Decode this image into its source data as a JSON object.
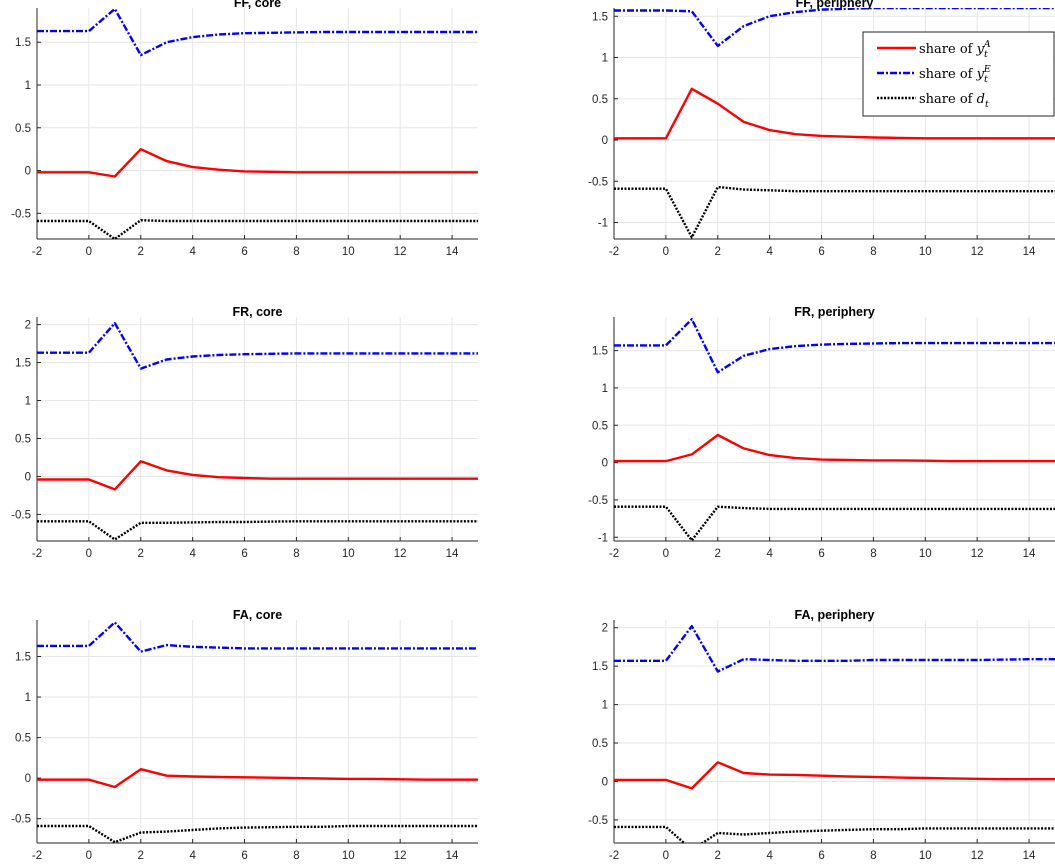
{
  "chart_data": [
    {
      "type": "line",
      "title": "FF, core",
      "x": [
        -2,
        -1,
        0,
        1,
        2,
        3,
        4,
        5,
        6,
        7,
        8,
        9,
        10,
        11,
        12,
        13,
        14,
        15
      ],
      "xlim": [
        -2,
        15
      ],
      "ylim": [
        -0.8,
        1.9
      ],
      "xticks": [
        -2,
        0,
        2,
        4,
        6,
        8,
        10,
        12,
        14
      ],
      "yticks": [
        -0.5,
        0,
        0.5,
        1,
        1.5
      ],
      "grid": true,
      "series": [
        {
          "key": "yA",
          "color": "#ff0000",
          "dash": "solid",
          "values": [
            -0.02,
            -0.02,
            -0.02,
            -0.07,
            0.25,
            0.11,
            0.04,
            0.01,
            -0.01,
            -0.015,
            -0.02,
            -0.02,
            -0.02,
            -0.02,
            -0.02,
            -0.02,
            -0.02,
            -0.02
          ]
        },
        {
          "key": "yE",
          "color": "#0000ff",
          "dash": "dashdot",
          "values": [
            1.63,
            1.63,
            1.63,
            1.89,
            1.35,
            1.5,
            1.56,
            1.59,
            1.605,
            1.61,
            1.615,
            1.62,
            1.62,
            1.62,
            1.62,
            1.62,
            1.62,
            1.62
          ]
        },
        {
          "key": "d",
          "color": "#000000",
          "dash": "dotted",
          "values": [
            -0.59,
            -0.59,
            -0.59,
            -0.8,
            -0.58,
            -0.59,
            -0.59,
            -0.59,
            -0.59,
            -0.59,
            -0.59,
            -0.59,
            -0.59,
            -0.59,
            -0.59,
            -0.59,
            -0.59,
            -0.59
          ]
        }
      ]
    },
    {
      "type": "line",
      "title": "FF, periphery",
      "x": [
        -2,
        -1,
        0,
        1,
        2,
        3,
        4,
        5,
        6,
        7,
        8,
        9,
        10,
        11,
        12,
        13,
        14,
        15
      ],
      "xlim": [
        -2,
        15
      ],
      "ylim": [
        -1.2,
        1.6
      ],
      "xticks": [
        -2,
        0,
        2,
        4,
        6,
        8,
        10,
        12,
        14
      ],
      "yticks": [
        -1,
        -0.5,
        0,
        0.5,
        1,
        1.5
      ],
      "grid": true,
      "legend": {
        "placement": "top-right",
        "entries": [
          "yA",
          "yE",
          "d"
        ]
      },
      "series": [
        {
          "key": "yA",
          "color": "#ff0000",
          "dash": "solid",
          "values": [
            0.02,
            0.02,
            0.02,
            0.62,
            0.44,
            0.22,
            0.12,
            0.07,
            0.05,
            0.04,
            0.03,
            0.025,
            0.02,
            0.02,
            0.02,
            0.02,
            0.02,
            0.02
          ]
        },
        {
          "key": "yE",
          "color": "#0000ff",
          "dash": "dashdot",
          "values": [
            1.57,
            1.57,
            1.57,
            1.56,
            1.14,
            1.38,
            1.5,
            1.55,
            1.58,
            1.59,
            1.6,
            1.6,
            1.6,
            1.6,
            1.6,
            1.6,
            1.6,
            1.6
          ]
        },
        {
          "key": "d",
          "color": "#000000",
          "dash": "dotted",
          "values": [
            -0.59,
            -0.59,
            -0.59,
            -1.18,
            -0.57,
            -0.6,
            -0.61,
            -0.62,
            -0.62,
            -0.62,
            -0.62,
            -0.62,
            -0.62,
            -0.62,
            -0.62,
            -0.62,
            -0.62,
            -0.62
          ]
        }
      ]
    },
    {
      "type": "line",
      "title": "FR, core",
      "x": [
        -2,
        -1,
        0,
        1,
        2,
        3,
        4,
        5,
        6,
        7,
        8,
        9,
        10,
        11,
        12,
        13,
        14,
        15
      ],
      "xlim": [
        -2,
        15
      ],
      "ylim": [
        -0.85,
        2.1
      ],
      "xticks": [
        -2,
        0,
        2,
        4,
        6,
        8,
        10,
        12,
        14
      ],
      "yticks": [
        -0.5,
        0,
        0.5,
        1,
        1.5,
        2
      ],
      "grid": true,
      "series": [
        {
          "key": "yA",
          "color": "#ff0000",
          "dash": "solid",
          "values": [
            -0.04,
            -0.04,
            -0.04,
            -0.17,
            0.2,
            0.08,
            0.02,
            -0.01,
            -0.02,
            -0.03,
            -0.03,
            -0.03,
            -0.03,
            -0.03,
            -0.03,
            -0.03,
            -0.03,
            -0.03
          ]
        },
        {
          "key": "yE",
          "color": "#0000ff",
          "dash": "dashdot",
          "values": [
            1.63,
            1.63,
            1.63,
            2.02,
            1.42,
            1.54,
            1.58,
            1.6,
            1.61,
            1.615,
            1.62,
            1.62,
            1.62,
            1.62,
            1.62,
            1.62,
            1.62,
            1.62
          ]
        },
        {
          "key": "d",
          "color": "#000000",
          "dash": "dotted",
          "values": [
            -0.59,
            -0.59,
            -0.59,
            -0.83,
            -0.61,
            -0.61,
            -0.605,
            -0.6,
            -0.6,
            -0.595,
            -0.59,
            -0.59,
            -0.59,
            -0.59,
            -0.59,
            -0.59,
            -0.59,
            -0.59
          ]
        }
      ]
    },
    {
      "type": "line",
      "title": "FR, periphery",
      "x": [
        -2,
        -1,
        0,
        1,
        2,
        3,
        4,
        5,
        6,
        7,
        8,
        9,
        10,
        11,
        12,
        13,
        14,
        15
      ],
      "xlim": [
        -2,
        15
      ],
      "ylim": [
        -1.05,
        1.95
      ],
      "xticks": [
        -2,
        0,
        2,
        4,
        6,
        8,
        10,
        12,
        14
      ],
      "yticks": [
        -1,
        -0.5,
        0,
        0.5,
        1,
        1.5
      ],
      "grid": true,
      "series": [
        {
          "key": "yA",
          "color": "#ff0000",
          "dash": "solid",
          "values": [
            0.02,
            0.02,
            0.02,
            0.11,
            0.37,
            0.19,
            0.1,
            0.06,
            0.04,
            0.035,
            0.03,
            0.03,
            0.025,
            0.02,
            0.02,
            0.02,
            0.02,
            0.02
          ]
        },
        {
          "key": "yE",
          "color": "#0000ff",
          "dash": "dashdot",
          "values": [
            1.57,
            1.57,
            1.57,
            1.92,
            1.21,
            1.43,
            1.52,
            1.56,
            1.58,
            1.59,
            1.595,
            1.6,
            1.6,
            1.6,
            1.6,
            1.6,
            1.6,
            1.6
          ]
        },
        {
          "key": "d",
          "color": "#000000",
          "dash": "dotted",
          "values": [
            -0.59,
            -0.59,
            -0.59,
            -1.04,
            -0.59,
            -0.61,
            -0.62,
            -0.62,
            -0.62,
            -0.62,
            -0.62,
            -0.62,
            -0.62,
            -0.62,
            -0.62,
            -0.62,
            -0.62,
            -0.62
          ]
        }
      ]
    },
    {
      "type": "line",
      "title": "FA, core",
      "x": [
        -2,
        -1,
        0,
        1,
        2,
        3,
        4,
        5,
        6,
        7,
        8,
        9,
        10,
        11,
        12,
        13,
        14,
        15
      ],
      "xlim": [
        -2,
        15
      ],
      "ylim": [
        -0.8,
        1.95
      ],
      "xticks": [
        -2,
        0,
        2,
        4,
        6,
        8,
        10,
        12,
        14
      ],
      "yticks": [
        -0.5,
        0,
        0.5,
        1,
        1.5
      ],
      "grid": true,
      "series": [
        {
          "key": "yA",
          "color": "#ff0000",
          "dash": "solid",
          "values": [
            -0.02,
            -0.02,
            -0.02,
            -0.11,
            0.11,
            0.03,
            0.02,
            0.015,
            0.01,
            0.005,
            0.0,
            -0.005,
            -0.01,
            -0.01,
            -0.015,
            -0.02,
            -0.02,
            -0.02
          ]
        },
        {
          "key": "yE",
          "color": "#0000ff",
          "dash": "dashdot",
          "values": [
            1.63,
            1.63,
            1.63,
            1.92,
            1.56,
            1.64,
            1.62,
            1.61,
            1.6,
            1.6,
            1.6,
            1.6,
            1.6,
            1.6,
            1.6,
            1.6,
            1.6,
            1.6
          ]
        },
        {
          "key": "d",
          "color": "#000000",
          "dash": "dotted",
          "values": [
            -0.59,
            -0.59,
            -0.59,
            -0.79,
            -0.67,
            -0.66,
            -0.64,
            -0.62,
            -0.61,
            -0.605,
            -0.6,
            -0.6,
            -0.59,
            -0.59,
            -0.59,
            -0.59,
            -0.59,
            -0.59
          ]
        }
      ]
    },
    {
      "type": "line",
      "title": "FA, periphery",
      "x": [
        -2,
        -1,
        0,
        1,
        2,
        3,
        4,
        5,
        6,
        7,
        8,
        9,
        10,
        11,
        12,
        13,
        14,
        15
      ],
      "xlim": [
        -2,
        15
      ],
      "ylim": [
        -0.8,
        2.1
      ],
      "xticks": [
        -2,
        0,
        2,
        4,
        6,
        8,
        10,
        12,
        14
      ],
      "yticks": [
        -0.5,
        0,
        0.5,
        1,
        1.5,
        2
      ],
      "grid": true,
      "series": [
        {
          "key": "yA",
          "color": "#ff0000",
          "dash": "solid",
          "values": [
            0.02,
            0.02,
            0.02,
            -0.09,
            0.25,
            0.11,
            0.09,
            0.085,
            0.075,
            0.065,
            0.06,
            0.05,
            0.045,
            0.04,
            0.035,
            0.03,
            0.03,
            0.03
          ]
        },
        {
          "key": "yE",
          "color": "#0000ff",
          "dash": "dashdot",
          "values": [
            1.57,
            1.57,
            1.57,
            2.02,
            1.43,
            1.59,
            1.58,
            1.57,
            1.57,
            1.57,
            1.58,
            1.58,
            1.58,
            1.58,
            1.58,
            1.585,
            1.59,
            1.59
          ]
        },
        {
          "key": "d",
          "color": "#000000",
          "dash": "dotted",
          "values": [
            -0.59,
            -0.59,
            -0.59,
            -0.89,
            -0.67,
            -0.69,
            -0.67,
            -0.65,
            -0.64,
            -0.63,
            -0.62,
            -0.62,
            -0.61,
            -0.61,
            -0.61,
            -0.61,
            -0.61,
            -0.61
          ]
        }
      ]
    }
  ],
  "legend": {
    "entries": [
      {
        "key": "yA",
        "prefix": "share of",
        "symbol": "y",
        "sub": "t",
        "sup": "A"
      },
      {
        "key": "yE",
        "prefix": "share of",
        "symbol": "y",
        "sub": "t",
        "sup": "E"
      },
      {
        "key": "d",
        "prefix": "share of",
        "symbol": "d",
        "sub": "t",
        "sup": ""
      }
    ]
  }
}
